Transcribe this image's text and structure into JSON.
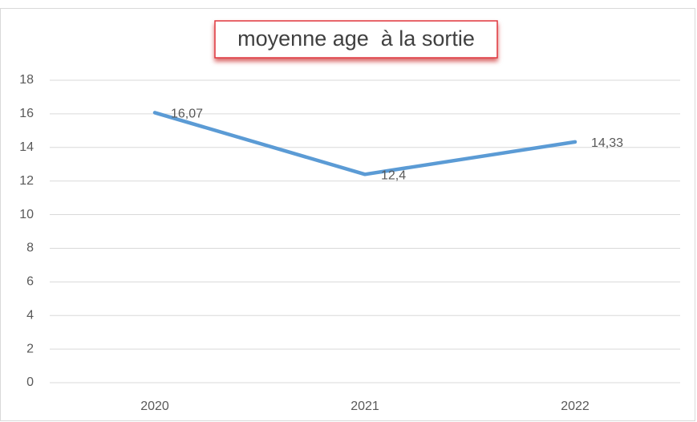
{
  "chart_data": {
    "type": "line",
    "title": "moyenne age  à la sortie",
    "categories": [
      "2020",
      "2021",
      "2022"
    ],
    "series": [
      {
        "name": null,
        "color": "#5b9bd5",
        "values": [
          16.07,
          12.4,
          14.33
        ],
        "value_labels": [
          "16,07",
          "12,4",
          "14,33"
        ]
      }
    ],
    "ylim": [
      0,
      18
    ],
    "yticks": [
      0,
      2,
      4,
      6,
      8,
      10,
      12,
      14,
      16,
      18
    ],
    "grid": true
  }
}
